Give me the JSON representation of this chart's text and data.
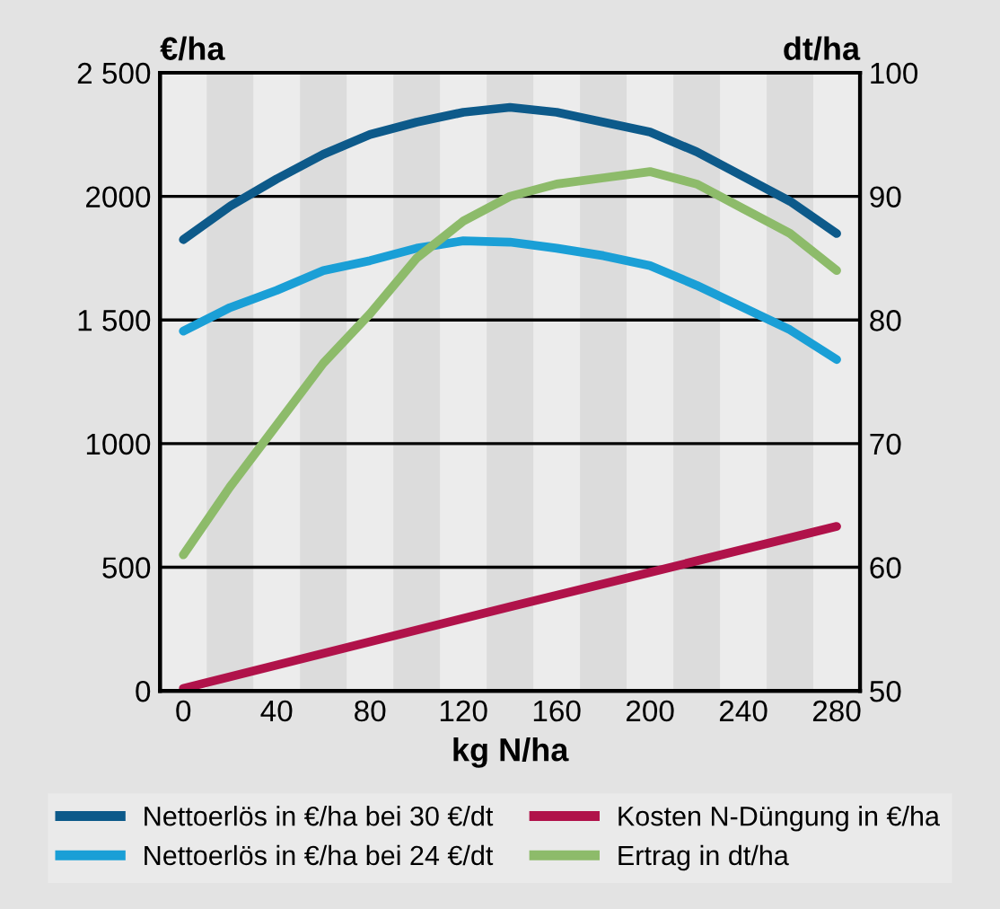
{
  "chart_data": {
    "type": "line",
    "xlabel": "kg N/ha",
    "ylabel": "€/ha",
    "y2label": "dt/ha",
    "xlim": [
      -10,
      290
    ],
    "xticks": [
      0,
      40,
      80,
      120,
      160,
      200,
      240,
      280
    ],
    "ylim": [
      0,
      2500
    ],
    "yticks": [
      0,
      500,
      {
        "value": 1000,
        "label": "1000"
      },
      {
        "value": 1500,
        "label": "1 500"
      },
      {
        "value": 2000,
        "label": "2000"
      },
      {
        "value": 2500,
        "label": "2 500"
      }
    ],
    "y2lim": [
      50,
      100
    ],
    "y2ticks": [
      50,
      60,
      70,
      80,
      90,
      100
    ],
    "grid": "y",
    "legend": "bottom",
    "line_style": "solid",
    "marker": "none",
    "bands": [
      {
        "axis": "x",
        "from": 10,
        "to": 30,
        "color": "#dcdcdc"
      },
      {
        "axis": "x",
        "from": 50,
        "to": 70,
        "color": "#dcdcdc"
      },
      {
        "axis": "x",
        "from": 90,
        "to": 110,
        "color": "#dcdcdc"
      },
      {
        "axis": "x",
        "from": 130,
        "to": 150,
        "color": "#dcdcdc"
      },
      {
        "axis": "x",
        "from": 170,
        "to": 190,
        "color": "#dcdcdc"
      },
      {
        "axis": "x",
        "from": 210,
        "to": 230,
        "color": "#dcdcdc"
      },
      {
        "axis": "x",
        "from": 250,
        "to": 270,
        "color": "#dcdcdc"
      }
    ],
    "series": [
      {
        "name": "Nettoerlös in €/ha bei 30 €/dt",
        "color": "#0d5a8a",
        "x": [
          0,
          20,
          40,
          60,
          80,
          100,
          120,
          140,
          160,
          180,
          200,
          220,
          240,
          260,
          280
        ],
        "values": [
          1825,
          1960,
          2070,
          2170,
          2250,
          2300,
          2340,
          2360,
          2340,
          2300,
          2260,
          2180,
          2080,
          1980,
          1850
        ]
      },
      {
        "name": "Nettoerlös in €/ha bei 24 €/dt",
        "color": "#1a9fd6",
        "x": [
          0,
          20,
          40,
          60,
          80,
          100,
          120,
          140,
          160,
          180,
          200,
          220,
          240,
          260,
          280
        ],
        "values": [
          1455,
          1550,
          1620,
          1700,
          1740,
          1790,
          1820,
          1815,
          1790,
          1760,
          1720,
          1640,
          1550,
          1460,
          1340
        ]
      },
      {
        "name": "Kosten N-Düngung in €/ha",
        "color": "#b0124a",
        "x": [
          0,
          140,
          280
        ],
        "values": [
          10,
          340,
          665
        ]
      },
      {
        "name": "Ertrag in dt/ha",
        "color": "#8dbb6a",
        "axis": "y2",
        "x": [
          0,
          20,
          40,
          60,
          80,
          100,
          120,
          140,
          160,
          180,
          200,
          220,
          240,
          260,
          280
        ],
        "values": [
          61,
          66.5,
          71.5,
          76.5,
          80.5,
          85,
          88,
          90,
          91,
          91.5,
          92,
          91,
          89,
          87,
          84
        ]
      }
    ]
  }
}
